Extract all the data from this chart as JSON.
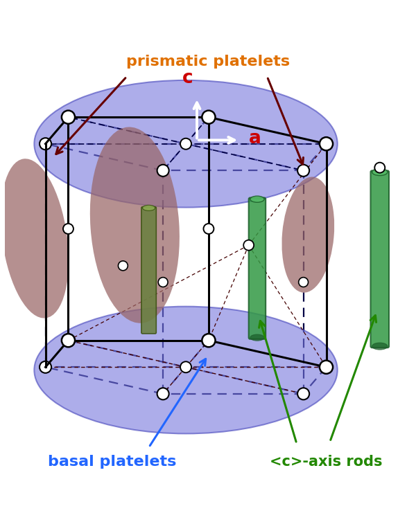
{
  "fig_width": 6.0,
  "fig_height": 7.54,
  "dpi": 100,
  "bg_color": "#ffffff",
  "title_prismatic": "prismatic platelets",
  "title_basal": "basal platelets",
  "title_rods": "<c>-axis rods",
  "color_prismatic_text": "#e07000",
  "color_basal_text": "#2266ff",
  "color_rods_text": "#228800",
  "color_basal_fill": "#7777dd",
  "color_basal_alpha": 0.6,
  "color_prismatic_fill": "#996666",
  "color_prismatic_alpha": 0.72,
  "color_rod_fill": "#339944",
  "color_rod_edge": "#1a5c28",
  "color_rod_alpha": 0.85,
  "color_rod_top": "#55bb66",
  "node_color": "#ffffff",
  "node_edge": "#000000",
  "edge_color": "#000000",
  "dashed_color": "#000044",
  "arrow_color_pris": "#660000",
  "arrow_color_basal": "#2266ff",
  "arrow_color_rod": "#228800",
  "axis_c_color": "#cc0000",
  "axis_a_color": "#cc0000"
}
